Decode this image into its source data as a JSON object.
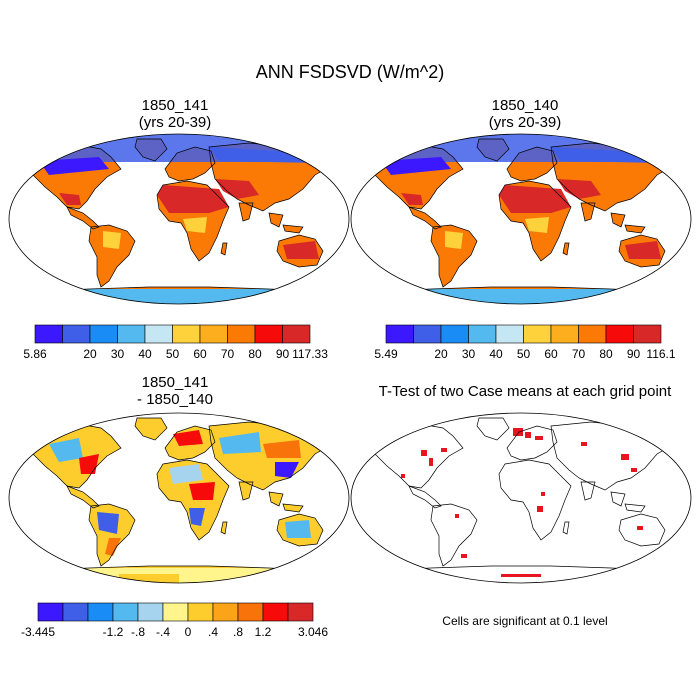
{
  "title": "ANN FSDSVD (W/m^2)",
  "panels": {
    "p1": {
      "line1": "1850_141",
      "line2": "(yrs 20-39)"
    },
    "p2": {
      "line1": "1850_140",
      "line2": "(yrs 20-39)"
    },
    "p3": {
      "line1": "1850_141",
      "line2": "- 1850_140"
    },
    "p4": {
      "line1": "T-Test of two Case means at each grid point"
    }
  },
  "colorbars": {
    "cb1": {
      "colors": [
        "#3b18ff",
        "#3f5fe8",
        "#1a8cf5",
        "#53b9ef",
        "#c5e7f3",
        "#fdd23a",
        "#fdae1f",
        "#fb7a06",
        "#f60a0a",
        "#d82828"
      ],
      "labels": [
        "5.86",
        "20",
        "30",
        "40",
        "50",
        "60",
        "70",
        "80",
        "90",
        "117.33"
      ]
    },
    "cb2": {
      "colors": [
        "#3b18ff",
        "#3f5fe8",
        "#1a8cf5",
        "#53b9ef",
        "#c5e7f3",
        "#fdd23a",
        "#fdae1f",
        "#fb7a06",
        "#f60a0a",
        "#d82828"
      ],
      "labels": [
        "5.49",
        "20",
        "30",
        "40",
        "50",
        "60",
        "70",
        "80",
        "90",
        "116.1"
      ]
    },
    "cb3": {
      "colors": [
        "#3b18ff",
        "#3f5fe8",
        "#1a8cf5",
        "#53b9ef",
        "#a6d4ee",
        "#fff58c",
        "#fdcd2e",
        "#fba41a",
        "#f8740a",
        "#f60a0a",
        "#d82828"
      ],
      "labels": [
        "-3.445",
        "",
        "-1.2",
        "-.8",
        "-.4",
        "0",
        ".4",
        ".8",
        "1.2",
        "",
        "3.046"
      ]
    }
  },
  "note": "Cells are significant at 0.1 level",
  "colors": {
    "ocean": "#ffffff",
    "coast": "#000000",
    "significant": "#e8141e"
  }
}
